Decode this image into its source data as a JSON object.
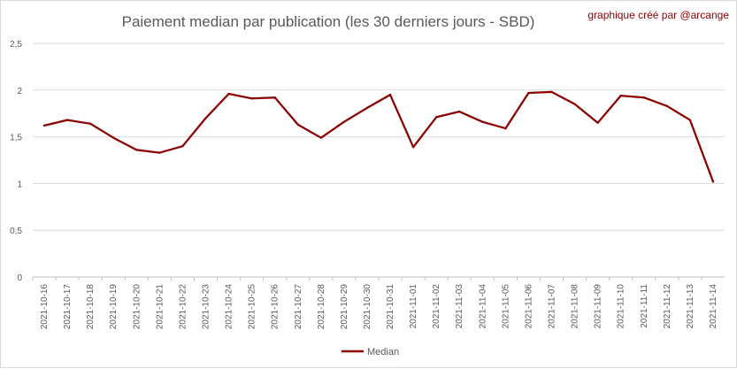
{
  "chart_data": {
    "type": "line",
    "title": "Paiement median par publication (les 30 derniers jours - SBD)",
    "credit": "graphique créé par @arcange",
    "categories": [
      "2021-10-16",
      "2021-10-17",
      "2021-10-18",
      "2021-10-19",
      "2021-10-20",
      "2021-10-21",
      "2021-10-22",
      "2021-10-23",
      "2021-10-24",
      "2021-10-25",
      "2021-10-26",
      "2021-10-27",
      "2021-10-28",
      "2021-10-29",
      "2021-10-30",
      "2021-10-31",
      "2021-11-01",
      "2021-11-02",
      "2021-11-03",
      "2021-11-04",
      "2021-11-05",
      "2021-11-06",
      "2021-11-07",
      "2021-11-08",
      "2021-11-09",
      "2021-11-10",
      "2021-11-11",
      "2021-11-12",
      "2021-11-13",
      "2021-11-14"
    ],
    "series": [
      {
        "name": "Median",
        "color": "#8b0000",
        "values": [
          1.62,
          1.68,
          1.64,
          1.49,
          1.36,
          1.33,
          1.4,
          1.7,
          1.96,
          1.91,
          1.92,
          1.63,
          1.49,
          1.66,
          1.81,
          1.95,
          1.39,
          1.71,
          1.77,
          1.66,
          1.59,
          1.97,
          1.98,
          1.85,
          1.65,
          1.94,
          1.92,
          1.83,
          1.68,
          1.02
        ]
      }
    ],
    "yticks": [
      "0",
      "0,5",
      "1",
      "1,5",
      "2",
      "2,5"
    ],
    "ylim": [
      0,
      2.5
    ],
    "grid": true,
    "legend": "bottom"
  }
}
